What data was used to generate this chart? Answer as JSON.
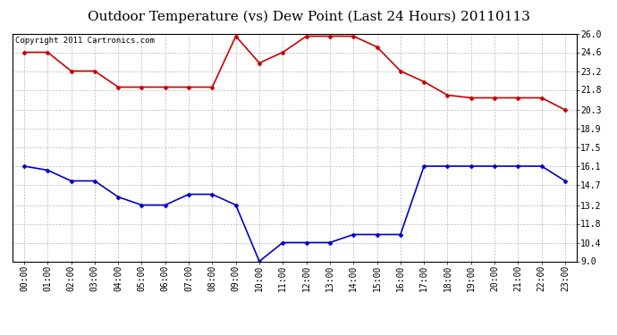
{
  "title": "Outdoor Temperature (vs) Dew Point (Last 24 Hours) 20110113",
  "copyright": "Copyright 2011 Cartronics.com",
  "x_labels": [
    "00:00",
    "01:00",
    "02:00",
    "03:00",
    "04:00",
    "05:00",
    "06:00",
    "07:00",
    "08:00",
    "09:00",
    "10:00",
    "11:00",
    "12:00",
    "13:00",
    "14:00",
    "15:00",
    "16:00",
    "17:00",
    "18:00",
    "19:00",
    "20:00",
    "21:00",
    "22:00",
    "23:00"
  ],
  "temp_data": [
    24.6,
    24.6,
    23.2,
    23.2,
    22.0,
    22.0,
    22.0,
    22.0,
    22.0,
    25.8,
    23.8,
    24.6,
    25.8,
    25.8,
    25.8,
    25.0,
    23.2,
    22.4,
    21.4,
    21.2,
    21.2,
    21.2,
    21.2,
    20.3
  ],
  "dew_data": [
    16.1,
    15.8,
    15.0,
    15.0,
    13.8,
    13.2,
    13.2,
    14.0,
    14.0,
    13.2,
    9.0,
    10.4,
    10.4,
    10.4,
    11.0,
    11.0,
    11.0,
    16.1,
    16.1,
    16.1,
    16.1,
    16.1,
    16.1,
    15.0
  ],
  "temp_color": "#cc0000",
  "dew_color": "#0000cc",
  "bg_color": "#ffffff",
  "grid_color": "#bbbbbb",
  "y_ticks": [
    9.0,
    10.4,
    11.8,
    13.2,
    14.7,
    16.1,
    17.5,
    18.9,
    20.3,
    21.8,
    23.2,
    24.6,
    26.0
  ],
  "y_min": 9.0,
  "y_max": 26.0,
  "title_fontsize": 11,
  "copyright_fontsize": 6.5,
  "tick_fontsize": 7,
  "ytick_fontsize": 7
}
